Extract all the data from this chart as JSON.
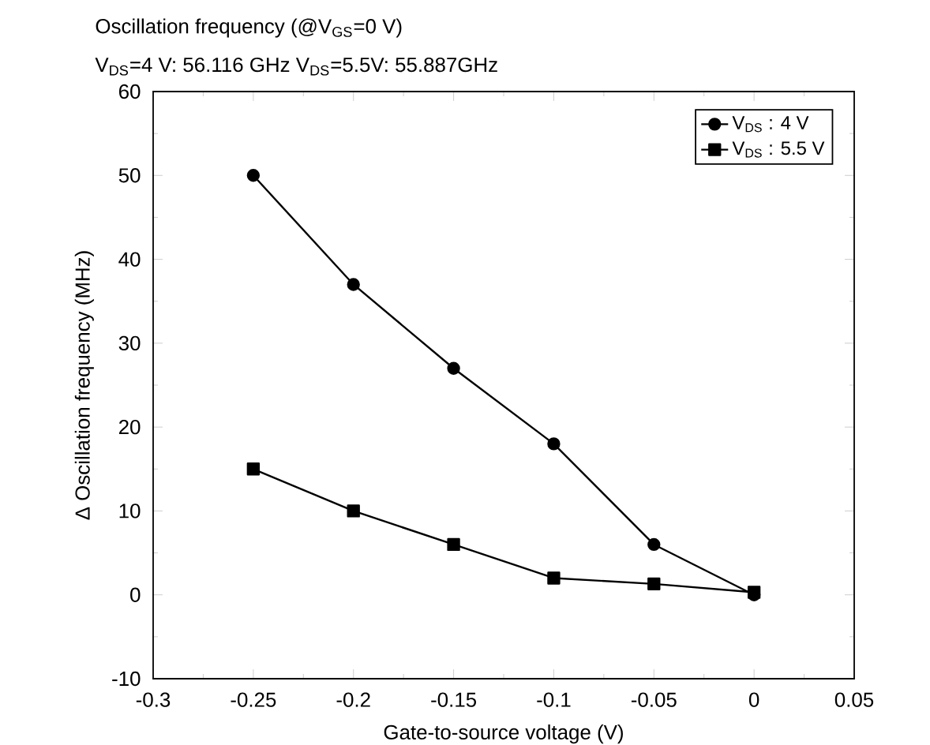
{
  "chart_data": {
    "type": "line",
    "title": "Oscillation frequency (@V$_{GS}$=0 V)",
    "subtitle": "V$_{DS}$=4 V: 56.116 GHz V$_{DS}$=5.5V: 55.887GHz",
    "xlabel": "Gate-to-source voltage (V)",
    "ylabel": "Δ Oscillation frequency (MHz)",
    "x": [
      -0.25,
      -0.2,
      -0.15,
      -0.1,
      -0.05,
      0
    ],
    "series": [
      {
        "name": "V$_{DS}$ : 4 V",
        "color": "#000000",
        "marker": "circle",
        "values": [
          50,
          37,
          27,
          18,
          6,
          0
        ]
      },
      {
        "name": "V$_{DS}$ : 5.5 V",
        "color": "#000000",
        "marker": "square",
        "values": [
          15,
          10,
          6,
          2,
          1.3,
          0.3
        ]
      }
    ],
    "xlim": [
      -0.3,
      0.05
    ],
    "xticks": [
      -0.3,
      -0.25,
      -0.2,
      -0.15,
      -0.1,
      -0.05,
      0,
      0.05
    ],
    "ylim": [
      -10,
      60
    ],
    "yticks": [
      -10,
      0,
      10,
      20,
      30,
      40,
      50,
      60
    ],
    "legend": "top right",
    "line_style": "solid",
    "grid": false
  }
}
